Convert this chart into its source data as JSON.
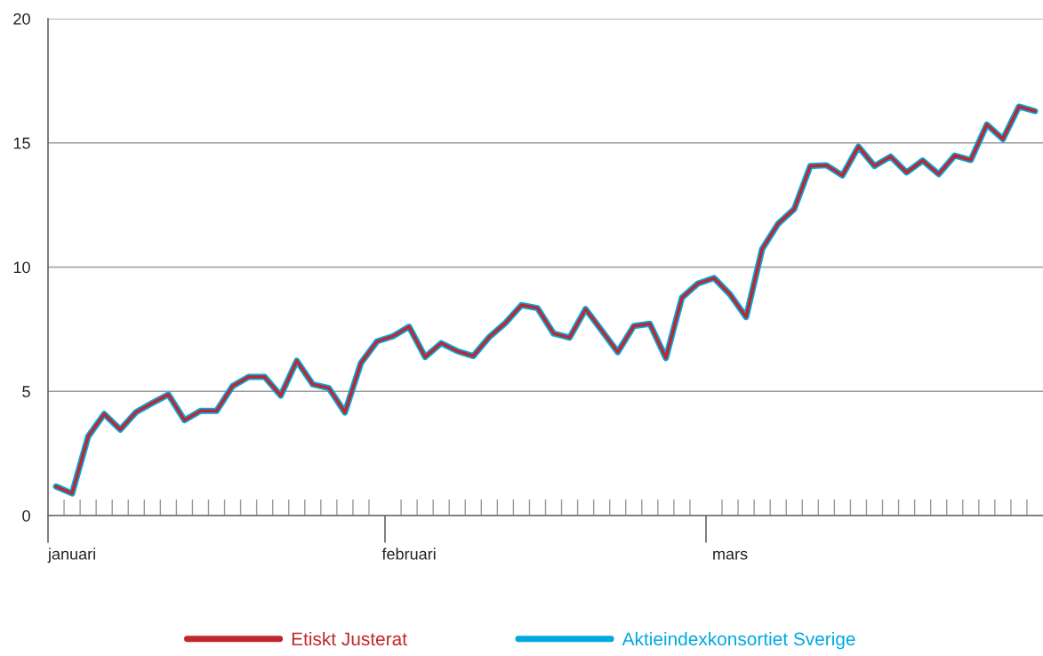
{
  "chart_data": {
    "type": "line",
    "categories": [
      null,
      "januari",
      null,
      null,
      null,
      null,
      null,
      null,
      null,
      null,
      null,
      null,
      null,
      null,
      null,
      null,
      null,
      null,
      null,
      null,
      null,
      null,
      "februari",
      null,
      null,
      null,
      null,
      null,
      null,
      null,
      null,
      null,
      null,
      null,
      null,
      null,
      null,
      null,
      null,
      null,
      null,
      null,
      "mars",
      null,
      null,
      null,
      null,
      null,
      null,
      null,
      null,
      null,
      null,
      null,
      null,
      null,
      null,
      null,
      null,
      null,
      null,
      null
    ],
    "series": [
      {
        "name": "Etiskt Justerat",
        "color": "#c0272d",
        "values": [
          1.17,
          0.89,
          3.18,
          4.09,
          3.46,
          4.17,
          4.53,
          4.87,
          3.84,
          4.21,
          4.21,
          5.21,
          5.58,
          5.58,
          4.83,
          6.23,
          5.28,
          5.13,
          4.15,
          6.14,
          7.01,
          7.22,
          7.6,
          6.38,
          6.94,
          6.62,
          6.42,
          7.19,
          7.75,
          8.47,
          8.35,
          7.33,
          7.16,
          8.31,
          7.45,
          6.58,
          7.63,
          7.72,
          6.34,
          8.77,
          9.34,
          9.56,
          8.9,
          7.99,
          10.73,
          11.75,
          12.34,
          14.07,
          14.1,
          13.69,
          14.85,
          14.07,
          14.45,
          13.81,
          14.29,
          13.74,
          14.49,
          14.31,
          15.74,
          15.15,
          16.46,
          16.28
        ]
      },
      {
        "name": "Aktieindexkonsortiet Sverige",
        "color": "#00a9e0",
        "values": [
          1.17,
          0.89,
          3.18,
          4.09,
          3.46,
          4.17,
          4.53,
          4.87,
          3.84,
          4.21,
          4.21,
          5.21,
          5.58,
          5.58,
          4.83,
          6.23,
          5.28,
          5.13,
          4.15,
          6.14,
          7.01,
          7.22,
          7.6,
          6.38,
          6.94,
          6.62,
          6.42,
          7.19,
          7.75,
          8.47,
          8.35,
          7.33,
          7.16,
          8.31,
          7.45,
          6.58,
          7.63,
          7.72,
          6.34,
          8.77,
          9.34,
          9.56,
          8.9,
          7.99,
          10.73,
          11.75,
          12.34,
          14.07,
          14.1,
          13.69,
          14.85,
          14.07,
          14.45,
          13.81,
          14.29,
          13.74,
          14.49,
          14.31,
          15.74,
          15.15,
          16.46,
          16.28
        ]
      }
    ],
    "ylim": [
      0,
      20
    ],
    "yticks": [
      0,
      5,
      10,
      15,
      20
    ],
    "grid": "y",
    "legend": "bottom",
    "marker": "none",
    "line_style": "solid"
  }
}
